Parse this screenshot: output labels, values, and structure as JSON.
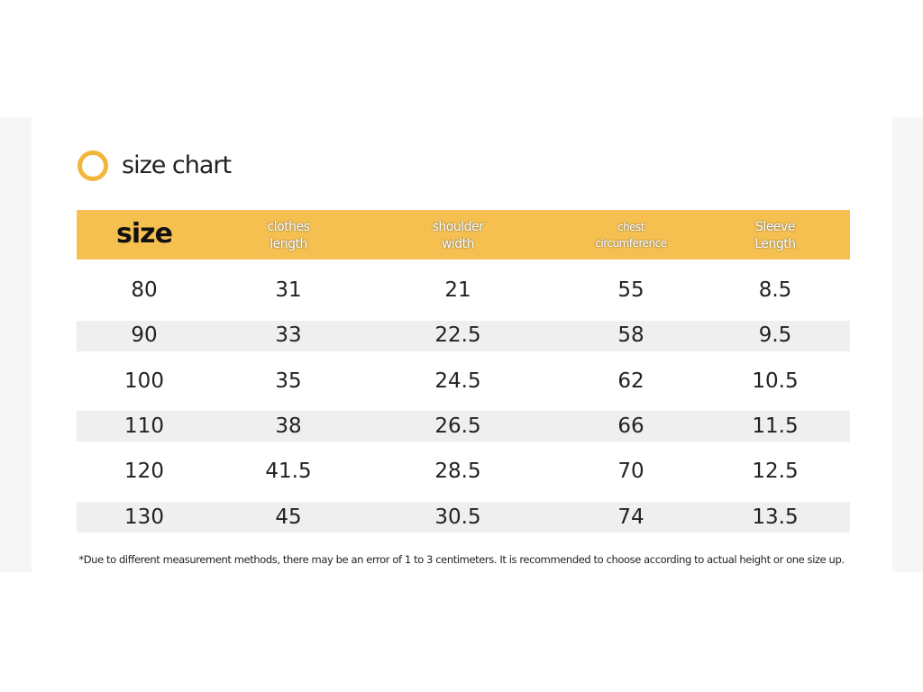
{
  "title": "size chart",
  "table": {
    "header": [
      [
        "size"
      ],
      [
        "clothes",
        "length"
      ],
      [
        "shoulder",
        "width"
      ],
      [
        "chest",
        "circumference"
      ],
      [
        "Sleeve",
        "Length"
      ]
    ],
    "rows": [
      [
        80,
        31,
        21,
        55,
        8.5
      ],
      [
        90,
        33,
        22.5,
        58,
        9.5
      ],
      [
        100,
        35,
        24.5,
        62,
        10.5
      ],
      [
        110,
        38,
        26.5,
        66,
        11.5
      ],
      [
        120,
        41.5,
        28.5,
        70,
        12.5
      ],
      [
        130,
        45,
        30.5,
        74,
        13.5
      ]
    ]
  },
  "footnote": "*Due to different measurement methods, there may be an error of 1 to 3 centimeters. It is recommended to choose according to actual height or one size up."
}
